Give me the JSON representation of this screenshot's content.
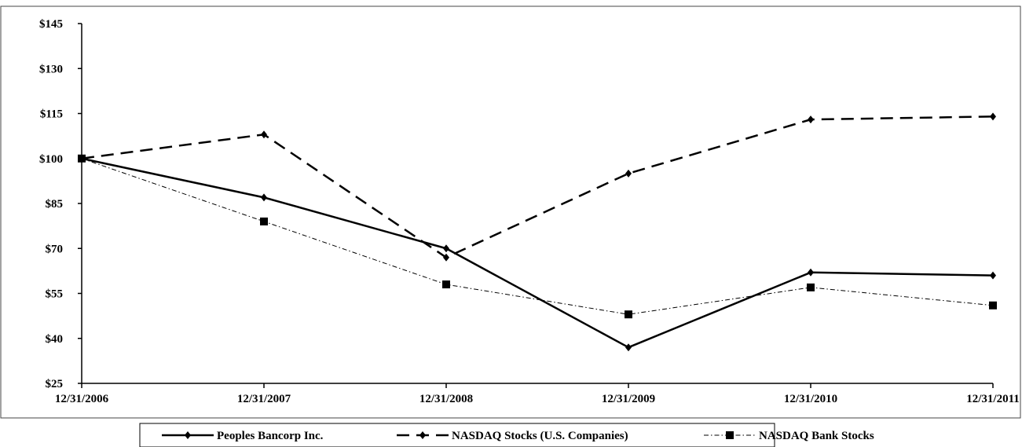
{
  "chart_data": {
    "type": "line",
    "title": "",
    "xlabel": "",
    "ylabel": "",
    "categories": [
      "12/31/2006",
      "12/31/2007",
      "12/31/2008",
      "12/31/2009",
      "12/31/2010",
      "12/31/2011"
    ],
    "y_ticks": [
      "$25",
      "$40",
      "$55",
      "$70",
      "$85",
      "$100",
      "$115",
      "$130",
      "$145"
    ],
    "ylim": [
      25,
      145
    ],
    "grid": false,
    "legend_position": "bottom",
    "series": [
      {
        "name": "Peoples Bancorp Inc.",
        "values": [
          100,
          87,
          70,
          37,
          62,
          61
        ],
        "color": "#000000",
        "line_style": "solid",
        "marker": "diamond"
      },
      {
        "name": "NASDAQ Stocks (U.S. Companies)",
        "values": [
          100,
          108,
          67,
          95,
          113,
          114
        ],
        "color": "#000000",
        "line_style": "dashed",
        "marker": "diamond"
      },
      {
        "name": "NASDAQ Bank Stocks",
        "values": [
          100,
          79,
          58,
          48,
          57,
          51
        ],
        "color": "#000000",
        "line_style": "dash-dot",
        "marker": "square"
      }
    ]
  }
}
